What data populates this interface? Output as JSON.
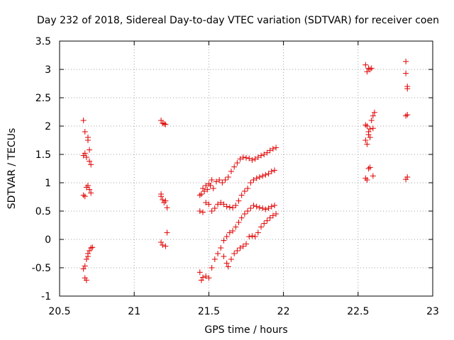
{
  "chart_data": {
    "type": "scatter",
    "title": "Day 232 of 2018, Sidereal Day-to-day VTEC variation (SDTVAR) for receiver coen",
    "xlabel": "GPS time / hours",
    "ylabel": "SDTVAR / TECUs",
    "xlim": [
      20.5,
      23
    ],
    "ylim": [
      -1,
      3.5
    ],
    "xticks": [
      20.5,
      21,
      21.5,
      22,
      22.5,
      23
    ],
    "xtick_labels": [
      "20.5",
      "21",
      "21.5",
      "22",
      "22.5",
      "23"
    ],
    "yticks": [
      -1,
      -0.5,
      0,
      0.5,
      1,
      1.5,
      2,
      2.5,
      3,
      3.5
    ],
    "ytick_labels": [
      "-1",
      "-0.5",
      "0",
      "0.5",
      "1",
      "1.5",
      "2",
      "2.5",
      "3",
      "3.5"
    ],
    "grid": true,
    "marker": "+",
    "marker_color": "#e00000",
    "series": [
      {
        "name": "SDTVAR",
        "points": [
          [
            20.66,
            2.1
          ],
          [
            20.67,
            1.9
          ],
          [
            20.69,
            1.8
          ],
          [
            20.69,
            1.75
          ],
          [
            20.7,
            1.58
          ],
          [
            20.66,
            1.48
          ],
          [
            20.67,
            1.52
          ],
          [
            20.68,
            1.45
          ],
          [
            20.7,
            1.38
          ],
          [
            20.71,
            1.32
          ],
          [
            20.66,
            0.78
          ],
          [
            20.67,
            0.76
          ],
          [
            20.68,
            0.92
          ],
          [
            20.69,
            0.95
          ],
          [
            20.7,
            0.88
          ],
          [
            20.71,
            0.82
          ],
          [
            20.66,
            -0.52
          ],
          [
            20.67,
            -0.47
          ],
          [
            20.67,
            -0.68
          ],
          [
            20.68,
            -0.72
          ],
          [
            20.68,
            -0.35
          ],
          [
            20.69,
            -0.25
          ],
          [
            20.69,
            -0.3
          ],
          [
            20.7,
            -0.2
          ],
          [
            20.71,
            -0.15
          ],
          [
            20.72,
            -0.14
          ],
          [
            21.18,
            2.1
          ],
          [
            21.19,
            2.05
          ],
          [
            21.2,
            2.04
          ],
          [
            21.21,
            2.03
          ],
          [
            21.18,
            0.8
          ],
          [
            21.18,
            0.76
          ],
          [
            21.19,
            0.7
          ],
          [
            21.2,
            0.65
          ],
          [
            21.21,
            0.68
          ],
          [
            21.22,
            0.56
          ],
          [
            21.18,
            -0.05
          ],
          [
            21.19,
            -0.1
          ],
          [
            21.21,
            -0.12
          ],
          [
            21.22,
            0.12
          ],
          [
            22.55,
            3.08
          ],
          [
            22.56,
            2.96
          ],
          [
            22.57,
            3.02
          ],
          [
            22.58,
            3.0
          ],
          [
            22.59,
            3.02
          ],
          [
            22.55,
            2.02
          ],
          [
            22.56,
            2.0
          ],
          [
            22.57,
            1.9
          ],
          [
            22.58,
            1.95
          ],
          [
            22.59,
            2.1
          ],
          [
            22.6,
            2.18
          ],
          [
            22.61,
            2.24
          ],
          [
            22.55,
            1.75
          ],
          [
            22.56,
            1.68
          ],
          [
            22.57,
            1.85
          ],
          [
            22.58,
            1.8
          ],
          [
            22.6,
            1.96
          ],
          [
            22.55,
            1.08
          ],
          [
            22.56,
            1.05
          ],
          [
            22.57,
            1.25
          ],
          [
            22.58,
            1.27
          ],
          [
            22.6,
            1.12
          ],
          [
            22.82,
            3.14
          ],
          [
            22.82,
            2.93
          ],
          [
            22.83,
            2.7
          ],
          [
            22.83,
            2.66
          ],
          [
            22.83,
            2.2
          ],
          [
            22.82,
            2.18
          ],
          [
            22.83,
            1.1
          ],
          [
            22.82,
            1.06
          ],
          [
            21.44,
            0.78
          ],
          [
            21.45,
            0.8
          ],
          [
            21.46,
            0.9
          ],
          [
            21.47,
            0.85
          ],
          [
            21.48,
            0.95
          ],
          [
            21.49,
            0.88
          ],
          [
            21.5,
            0.98
          ],
          [
            21.51,
            0.95
          ],
          [
            21.52,
            1.05
          ],
          [
            21.53,
            0.9
          ],
          [
            21.55,
            1.02
          ],
          [
            21.57,
            1.05
          ],
          [
            21.59,
            1.0
          ],
          [
            21.61,
            1.05
          ],
          [
            21.63,
            1.1
          ],
          [
            21.65,
            1.2
          ],
          [
            21.67,
            1.28
          ],
          [
            21.69,
            1.35
          ],
          [
            21.71,
            1.42
          ],
          [
            21.73,
            1.45
          ],
          [
            21.75,
            1.44
          ],
          [
            21.77,
            1.43
          ],
          [
            21.79,
            1.4
          ],
          [
            21.81,
            1.42
          ],
          [
            21.83,
            1.45
          ],
          [
            21.85,
            1.48
          ],
          [
            21.87,
            1.5
          ],
          [
            21.89,
            1.53
          ],
          [
            21.91,
            1.57
          ],
          [
            21.93,
            1.6
          ],
          [
            21.95,
            1.62
          ],
          [
            21.44,
            0.5
          ],
          [
            21.46,
            0.48
          ],
          [
            21.48,
            0.65
          ],
          [
            21.5,
            0.62
          ],
          [
            21.52,
            0.5
          ],
          [
            21.54,
            0.55
          ],
          [
            21.56,
            0.62
          ],
          [
            21.58,
            0.65
          ],
          [
            21.6,
            0.62
          ],
          [
            21.62,
            0.58
          ],
          [
            21.64,
            0.57
          ],
          [
            21.66,
            0.56
          ],
          [
            21.68,
            0.6
          ],
          [
            21.7,
            0.68
          ],
          [
            21.72,
            0.78
          ],
          [
            21.74,
            0.85
          ],
          [
            21.76,
            0.9
          ],
          [
            21.78,
            1.0
          ],
          [
            21.8,
            1.05
          ],
          [
            21.82,
            1.08
          ],
          [
            21.84,
            1.1
          ],
          [
            21.86,
            1.12
          ],
          [
            21.88,
            1.14
          ],
          [
            21.9,
            1.16
          ],
          [
            21.92,
            1.2
          ],
          [
            21.94,
            1.22
          ],
          [
            21.44,
            -0.58
          ],
          [
            21.45,
            -0.72
          ],
          [
            21.46,
            -0.67
          ],
          [
            21.48,
            -0.65
          ],
          [
            21.5,
            -0.68
          ],
          [
            21.52,
            -0.5
          ],
          [
            21.54,
            -0.35
          ],
          [
            21.56,
            -0.25
          ],
          [
            21.58,
            -0.15
          ],
          [
            21.6,
            -0.02
          ],
          [
            21.62,
            0.05
          ],
          [
            21.64,
            0.12
          ],
          [
            21.66,
            0.15
          ],
          [
            21.68,
            0.22
          ],
          [
            21.7,
            0.3
          ],
          [
            21.72,
            0.38
          ],
          [
            21.74,
            0.45
          ],
          [
            21.76,
            0.5
          ],
          [
            21.78,
            0.55
          ],
          [
            21.8,
            0.6
          ],
          [
            21.82,
            0.58
          ],
          [
            21.84,
            0.56
          ],
          [
            21.86,
            0.55
          ],
          [
            21.88,
            0.53
          ],
          [
            21.9,
            0.55
          ],
          [
            21.92,
            0.58
          ],
          [
            21.94,
            0.6
          ],
          [
            21.6,
            -0.3
          ],
          [
            21.62,
            -0.42
          ],
          [
            21.63,
            -0.48
          ],
          [
            21.65,
            -0.35
          ],
          [
            21.67,
            -0.25
          ],
          [
            21.69,
            -0.2
          ],
          [
            21.71,
            -0.15
          ],
          [
            21.73,
            -0.12
          ],
          [
            21.75,
            -0.08
          ],
          [
            21.77,
            0.05
          ],
          [
            21.79,
            0.06
          ],
          [
            21.81,
            0.05
          ],
          [
            21.83,
            0.12
          ],
          [
            21.85,
            0.22
          ],
          [
            21.87,
            0.28
          ],
          [
            21.89,
            0.33
          ],
          [
            21.91,
            0.38
          ],
          [
            21.93,
            0.42
          ],
          [
            21.95,
            0.45
          ]
        ]
      }
    ]
  }
}
